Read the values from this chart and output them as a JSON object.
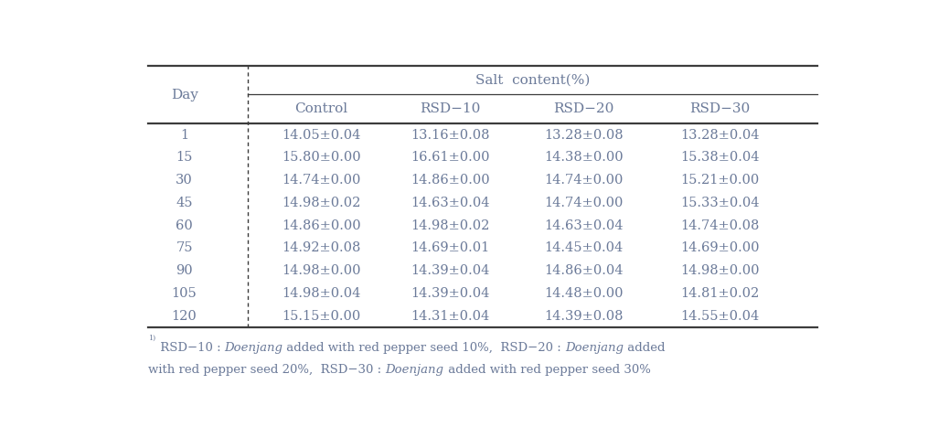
{
  "header_top": "Salt  content(%)",
  "days": [
    "1",
    "15",
    "30",
    "45",
    "60",
    "75",
    "90",
    "105",
    "120"
  ],
  "control": [
    "14.05±0.04",
    "15.80±0.00",
    "14.74±0.00",
    "14.98±0.02",
    "14.86±0.00",
    "14.92±0.08",
    "14.98±0.00",
    "14.98±0.04",
    "15.15±0.00"
  ],
  "rsd10": [
    "13.16±0.08",
    "16.61±0.00",
    "14.86±0.00",
    "14.63±0.04",
    "14.98±0.02",
    "14.69±0.01",
    "14.39±0.04",
    "14.39±0.04",
    "14.31±0.04"
  ],
  "rsd20": [
    "13.28±0.08",
    "14.38±0.00",
    "14.74±0.00",
    "14.74±0.00",
    "14.63±0.04",
    "14.45±0.04",
    "14.86±0.04",
    "14.48±0.00",
    "14.39±0.08"
  ],
  "rsd30": [
    "13.28±0.04",
    "15.38±0.04",
    "15.21±0.00",
    "15.33±0.04",
    "14.74±0.08",
    "14.69±0.00",
    "14.98±0.00",
    "14.81±0.02",
    "14.55±0.04"
  ],
  "sub_headers": [
    "Control",
    "RSD−10",
    "RSD−20",
    "RSD−30"
  ],
  "text_color": "#6b7a99",
  "line_color": "#3c3c3c",
  "bg_color": "#ffffff",
  "fs_header": 11,
  "fs_data": 10.5,
  "fs_footnote": 9.5
}
